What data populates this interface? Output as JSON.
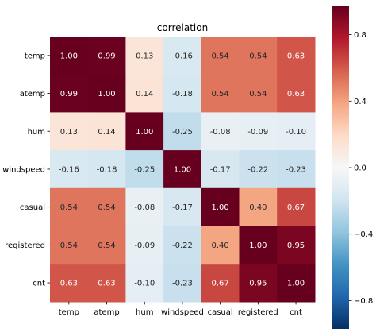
{
  "chart_data": {
    "type": "heatmap",
    "title": "correlation",
    "categories": [
      "temp",
      "atemp",
      "hum",
      "windspeed",
      "casual",
      "registered",
      "cnt"
    ],
    "values": [
      [
        1.0,
        0.99,
        0.13,
        -0.16,
        0.54,
        0.54,
        0.63
      ],
      [
        0.99,
        1.0,
        0.14,
        -0.18,
        0.54,
        0.54,
        0.63
      ],
      [
        0.13,
        0.14,
        1.0,
        -0.25,
        -0.08,
        -0.09,
        -0.1
      ],
      [
        -0.16,
        -0.18,
        -0.25,
        1.0,
        -0.17,
        -0.22,
        -0.23
      ],
      [
        0.54,
        0.54,
        -0.08,
        -0.17,
        1.0,
        0.4,
        0.67
      ],
      [
        0.54,
        0.54,
        -0.09,
        -0.22,
        0.4,
        1.0,
        0.95
      ],
      [
        0.63,
        0.63,
        -0.1,
        -0.23,
        0.67,
        0.95,
        1.0
      ]
    ],
    "value_format": "2 decimals",
    "colormap": "RdBu_r",
    "vmin": -1.0,
    "vmax": 1.0,
    "colorbar_ticks": [
      "0.8",
      "0.4",
      "0.0",
      "−0.4",
      "−0.8"
    ],
    "grid": false,
    "legend": "colorbar at right"
  }
}
